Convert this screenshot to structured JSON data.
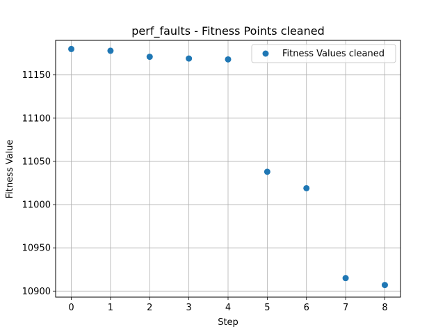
{
  "chart_data": {
    "type": "scatter",
    "title": "perf_faults - Fitness Points cleaned",
    "xlabel": "Step",
    "ylabel": "Fitness Value",
    "xlim": [
      -0.4,
      8.4
    ],
    "ylim": [
      10893,
      11190
    ],
    "xticks": [
      0,
      1,
      2,
      3,
      4,
      5,
      6,
      7,
      8
    ],
    "xtick_labels": [
      "0",
      "1",
      "2",
      "3",
      "4",
      "5",
      "6",
      "7",
      "8"
    ],
    "yticks": [
      10900,
      10950,
      11000,
      11050,
      11100,
      11150
    ],
    "ytick_labels": [
      "10900",
      "10950",
      "11000",
      "11050",
      "11100",
      "11150"
    ],
    "grid": true,
    "legend_position": "top-right",
    "series": [
      {
        "name": "Fitness Values cleaned",
        "color": "#1f77b4",
        "x": [
          0,
          1,
          2,
          3,
          4,
          5,
          6,
          7,
          8
        ],
        "y": [
          11180,
          11178,
          11171,
          11169,
          11168,
          11038,
          11019,
          10915,
          10907
        ]
      }
    ]
  }
}
